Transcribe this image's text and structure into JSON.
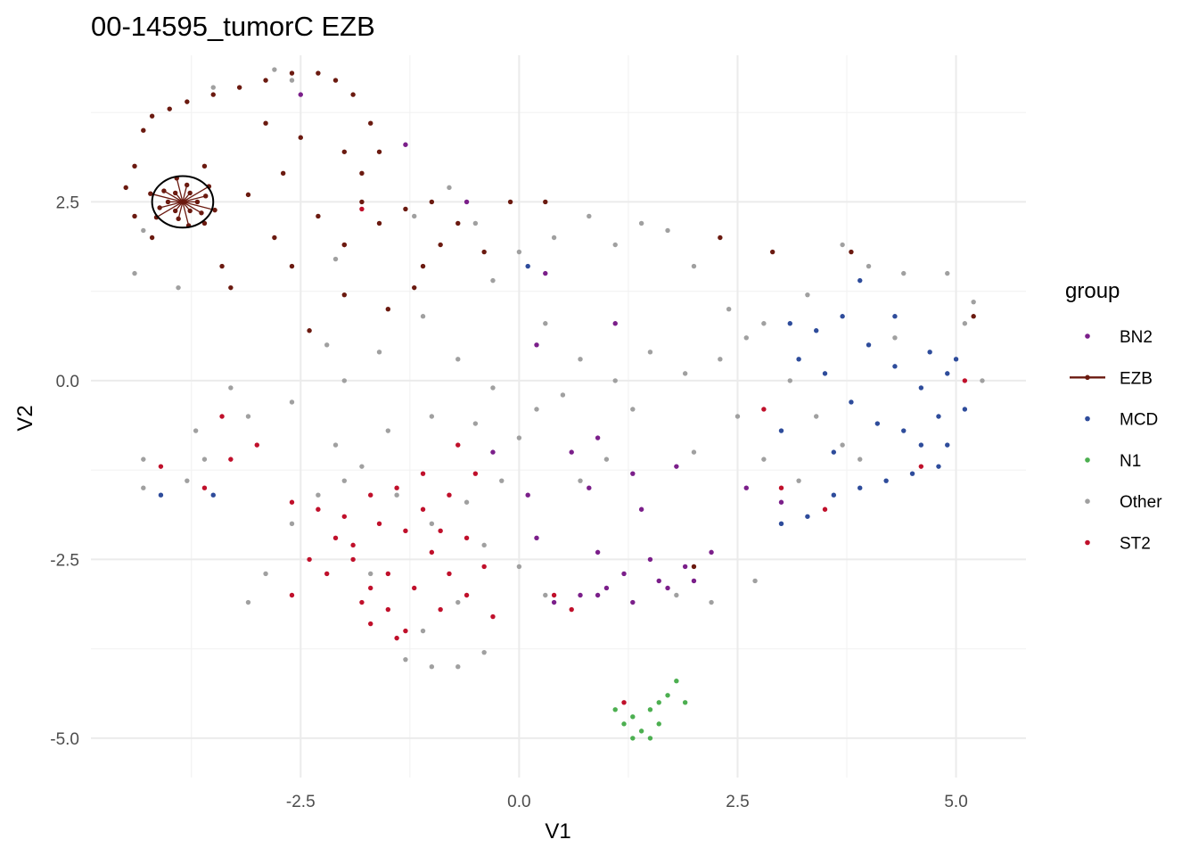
{
  "chart_data": {
    "type": "scatter",
    "title": "00-14595_tumorC EZB",
    "xlabel": "V1",
    "ylabel": "V2",
    "xlim": [
      -4.9,
      5.8
    ],
    "ylim": [
      -5.55,
      4.55
    ],
    "x_ticks": [
      -2.5,
      0.0,
      2.5,
      5.0
    ],
    "x_tick_labels": [
      "-2.5",
      "0.0",
      "2.5",
      "5.0"
    ],
    "y_ticks": [
      -5.0,
      -2.5,
      0.0,
      2.5
    ],
    "y_tick_labels": [
      "-5.0",
      "-2.5",
      "0.0",
      "2.5"
    ],
    "grid": true,
    "legend": {
      "title": "group",
      "position": "right",
      "entries": [
        {
          "label": "BN2",
          "color": "#7B1F8A",
          "style": "point"
        },
        {
          "label": "EZB",
          "color": "#6B1A10",
          "style": "line-point"
        },
        {
          "label": "MCD",
          "color": "#2E4C9B",
          "style": "point"
        },
        {
          "label": "N1",
          "color": "#4CAF50",
          "style": "point"
        },
        {
          "label": "Other",
          "color": "#A0A0A0",
          "style": "point"
        },
        {
          "label": "ST2",
          "color": "#C0102B",
          "style": "point"
        }
      ]
    },
    "annotation": {
      "type": "ellipse",
      "center": [
        -3.85,
        2.5
      ],
      "rx": 0.35,
      "ry": 0.36,
      "color": "#000000"
    },
    "series": [
      {
        "name": "EZB",
        "color": "#6B1A10",
        "star_center": [
          -3.85,
          2.5
        ],
        "points": [
          [
            -4.3,
            3.5
          ],
          [
            -4.2,
            3.7
          ],
          [
            -4.0,
            3.8
          ],
          [
            -3.8,
            3.9
          ],
          [
            -3.5,
            4.0
          ],
          [
            -3.2,
            4.1
          ],
          [
            -2.9,
            4.2
          ],
          [
            -2.6,
            4.3
          ],
          [
            -2.3,
            4.3
          ],
          [
            -2.1,
            4.2
          ],
          [
            -1.9,
            4.0
          ],
          [
            -1.7,
            3.6
          ],
          [
            -1.6,
            3.2
          ],
          [
            -1.8,
            2.9
          ],
          [
            -4.4,
            3.0
          ],
          [
            -4.5,
            2.7
          ],
          [
            -4.4,
            2.3
          ],
          [
            -4.2,
            2.0
          ],
          [
            -3.6,
            2.2
          ],
          [
            -3.4,
            1.6
          ],
          [
            -3.1,
            2.6
          ],
          [
            -2.8,
            2.0
          ],
          [
            -2.6,
            1.6
          ],
          [
            -2.3,
            2.3
          ],
          [
            -2.0,
            1.9
          ],
          [
            -1.6,
            2.2
          ],
          [
            -1.3,
            2.4
          ],
          [
            -1.0,
            2.5
          ],
          [
            -0.7,
            2.2
          ],
          [
            -0.4,
            1.8
          ],
          [
            -0.1,
            2.5
          ],
          [
            0.3,
            2.5
          ],
          [
            -2.0,
            1.2
          ],
          [
            -2.4,
            0.7
          ],
          [
            -1.5,
            1.0
          ],
          [
            -1.1,
            1.6
          ],
          [
            -2.9,
            3.6
          ],
          [
            -3.6,
            3.0
          ],
          [
            -2.5,
            3.4
          ],
          [
            -2.0,
            3.2
          ],
          [
            -3.3,
            1.3
          ],
          [
            -1.8,
            2.5
          ],
          [
            -0.9,
            1.9
          ],
          [
            2.3,
            2.0
          ],
          [
            2.9,
            1.8
          ],
          [
            3.8,
            1.8
          ],
          [
            5.2,
            0.9
          ],
          [
            -2.7,
            2.9
          ],
          [
            -1.2,
            1.3
          ],
          [
            2.0,
            -2.6
          ]
        ]
      },
      {
        "name": "BN2",
        "color": "#7B1F8A",
        "points": [
          [
            1.0,
            -2.9
          ],
          [
            1.3,
            -3.1
          ],
          [
            1.6,
            -2.8
          ],
          [
            1.9,
            -2.6
          ],
          [
            2.2,
            -2.4
          ],
          [
            0.7,
            -3.0
          ],
          [
            0.4,
            -3.1
          ],
          [
            0.9,
            -2.4
          ],
          [
            1.4,
            -1.8
          ],
          [
            0.8,
            -1.5
          ],
          [
            0.6,
            -1.0
          ],
          [
            1.7,
            -2.9
          ],
          [
            2.0,
            -2.8
          ],
          [
            0.2,
            -2.2
          ],
          [
            0.9,
            -0.8
          ],
          [
            1.3,
            -1.3
          ],
          [
            -0.3,
            -1.0
          ],
          [
            0.1,
            -1.6
          ],
          [
            1.8,
            -1.2
          ],
          [
            1.5,
            -2.5
          ],
          [
            0.3,
            1.5
          ],
          [
            1.1,
            0.8
          ],
          [
            0.2,
            0.5
          ],
          [
            2.6,
            -1.5
          ],
          [
            3.0,
            -1.7
          ],
          [
            -0.6,
            2.5
          ],
          [
            -2.5,
            4.0
          ],
          [
            -1.3,
            3.3
          ],
          [
            0.9,
            -3.0
          ],
          [
            1.2,
            -2.7
          ]
        ]
      },
      {
        "name": "MCD",
        "color": "#2E4C9B",
        "points": [
          [
            3.1,
            0.8
          ],
          [
            3.4,
            0.7
          ],
          [
            3.7,
            0.9
          ],
          [
            4.0,
            0.5
          ],
          [
            4.3,
            0.2
          ],
          [
            4.6,
            -0.1
          ],
          [
            4.8,
            -0.5
          ],
          [
            4.9,
            -0.9
          ],
          [
            4.8,
            -1.2
          ],
          [
            4.5,
            -1.3
          ],
          [
            4.2,
            -1.4
          ],
          [
            3.9,
            -1.5
          ],
          [
            3.6,
            -1.6
          ],
          [
            3.3,
            -1.9
          ],
          [
            3.0,
            -2.0
          ],
          [
            5.0,
            0.3
          ],
          [
            4.7,
            0.4
          ],
          [
            4.4,
            -0.7
          ],
          [
            3.8,
            -0.3
          ],
          [
            3.5,
            0.1
          ],
          [
            4.1,
            -0.6
          ],
          [
            4.9,
            0.1
          ],
          [
            3.2,
            0.3
          ],
          [
            3.9,
            1.4
          ],
          [
            4.3,
            0.9
          ],
          [
            3.6,
            -1.0
          ],
          [
            5.1,
            -0.4
          ],
          [
            4.6,
            -0.9
          ],
          [
            3.0,
            -0.7
          ],
          [
            -4.1,
            -1.6
          ],
          [
            -3.5,
            -1.6
          ],
          [
            0.1,
            1.6
          ]
        ]
      },
      {
        "name": "N1",
        "color": "#4CAF50",
        "points": [
          [
            1.1,
            -4.6
          ],
          [
            1.3,
            -4.7
          ],
          [
            1.5,
            -4.6
          ],
          [
            1.6,
            -4.5
          ],
          [
            1.7,
            -4.4
          ],
          [
            1.8,
            -4.2
          ],
          [
            1.4,
            -4.9
          ],
          [
            1.3,
            -5.0
          ],
          [
            1.6,
            -4.8
          ],
          [
            1.9,
            -4.5
          ],
          [
            1.5,
            -5.0
          ],
          [
            1.2,
            -4.8
          ]
        ]
      },
      {
        "name": "Other",
        "color": "#A0A0A0",
        "points": [
          [
            -2.8,
            4.35
          ],
          [
            -2.6,
            4.2
          ],
          [
            -3.5,
            4.1
          ],
          [
            -4.3,
            2.1
          ],
          [
            -4.4,
            1.5
          ],
          [
            -3.9,
            1.3
          ],
          [
            -2.1,
            1.7
          ],
          [
            -1.2,
            2.3
          ],
          [
            -0.8,
            2.7
          ],
          [
            -0.5,
            2.2
          ],
          [
            0.0,
            1.8
          ],
          [
            0.4,
            2.0
          ],
          [
            0.8,
            2.3
          ],
          [
            1.1,
            1.9
          ],
          [
            1.4,
            2.2
          ],
          [
            1.7,
            2.1
          ],
          [
            2.0,
            1.6
          ],
          [
            2.4,
            1.0
          ],
          [
            2.8,
            0.8
          ],
          [
            3.3,
            1.2
          ],
          [
            3.7,
            1.9
          ],
          [
            4.0,
            1.6
          ],
          [
            4.4,
            1.5
          ],
          [
            4.9,
            1.5
          ],
          [
            5.2,
            1.1
          ],
          [
            -0.3,
            1.4
          ],
          [
            0.3,
            0.8
          ],
          [
            0.7,
            0.3
          ],
          [
            1.1,
            0.0
          ],
          [
            1.5,
            0.4
          ],
          [
            1.9,
            0.1
          ],
          [
            2.3,
            0.3
          ],
          [
            2.6,
            0.6
          ],
          [
            -1.1,
            0.9
          ],
          [
            -0.7,
            0.3
          ],
          [
            -0.3,
            -0.1
          ],
          [
            0.2,
            -0.4
          ],
          [
            0.5,
            -0.2
          ],
          [
            -1.5,
            -0.7
          ],
          [
            -1.0,
            -0.5
          ],
          [
            -0.5,
            -0.6
          ],
          [
            0.0,
            -0.8
          ],
          [
            -0.2,
            -1.4
          ],
          [
            -0.6,
            -1.7
          ],
          [
            -1.0,
            -2.0
          ],
          [
            -1.4,
            -1.6
          ],
          [
            -1.8,
            -1.2
          ],
          [
            -2.1,
            -0.9
          ],
          [
            -0.4,
            -2.3
          ],
          [
            0.0,
            -2.6
          ],
          [
            -0.7,
            -3.1
          ],
          [
            -1.1,
            -3.5
          ],
          [
            -1.3,
            -3.9
          ],
          [
            -1.0,
            -4.0
          ],
          [
            -0.7,
            -4.0
          ],
          [
            -0.4,
            -3.8
          ],
          [
            0.3,
            -3.0
          ],
          [
            1.8,
            -3.0
          ],
          [
            2.2,
            -3.1
          ],
          [
            2.7,
            -2.8
          ],
          [
            -3.1,
            -3.1
          ],
          [
            -2.9,
            -2.7
          ],
          [
            -2.6,
            -2.0
          ],
          [
            -2.3,
            -1.6
          ],
          [
            -2.0,
            -1.4
          ],
          [
            -1.7,
            -2.7
          ],
          [
            -4.3,
            -1.1
          ],
          [
            -4.3,
            -1.5
          ],
          [
            -3.8,
            -1.4
          ],
          [
            -3.6,
            -1.1
          ],
          [
            -3.7,
            -0.7
          ],
          [
            -3.1,
            -0.5
          ],
          [
            -2.6,
            -0.3
          ],
          [
            -2.0,
            0.0
          ],
          [
            -3.3,
            -0.1
          ],
          [
            -1.6,
            0.4
          ],
          [
            -2.2,
            0.5
          ],
          [
            3.1,
            0.0
          ],
          [
            3.4,
            -0.5
          ],
          [
            3.7,
            -0.9
          ],
          [
            2.8,
            -1.1
          ],
          [
            3.2,
            -1.4
          ],
          [
            3.9,
            -1.1
          ],
          [
            4.3,
            0.6
          ],
          [
            5.1,
            0.8
          ],
          [
            5.3,
            0.0
          ],
          [
            0.7,
            -1.4
          ],
          [
            1.0,
            -1.1
          ],
          [
            2.0,
            -1.0
          ],
          [
            2.5,
            -0.5
          ],
          [
            1.3,
            -0.4
          ]
        ]
      },
      {
        "name": "ST2",
        "color": "#C0102B",
        "points": [
          [
            -2.3,
            -1.8
          ],
          [
            -2.1,
            -2.2
          ],
          [
            -1.9,
            -2.5
          ],
          [
            -1.7,
            -2.9
          ],
          [
            -1.5,
            -3.2
          ],
          [
            -1.3,
            -3.5
          ],
          [
            -1.8,
            -3.1
          ],
          [
            -1.6,
            -2.0
          ],
          [
            -1.3,
            -2.1
          ],
          [
            -1.0,
            -2.4
          ],
          [
            -0.8,
            -2.7
          ],
          [
            -0.6,
            -3.0
          ],
          [
            -1.4,
            -1.5
          ],
          [
            -1.1,
            -1.3
          ],
          [
            -0.8,
            -1.6
          ],
          [
            -0.6,
            -2.2
          ],
          [
            -0.4,
            -2.6
          ],
          [
            -1.7,
            -3.4
          ],
          [
            -1.9,
            -2.3
          ],
          [
            -1.5,
            -2.7
          ],
          [
            -1.2,
            -2.9
          ],
          [
            -0.9,
            -3.2
          ],
          [
            -2.4,
            -2.5
          ],
          [
            -2.6,
            -3.0
          ],
          [
            -3.4,
            -0.5
          ],
          [
            -3.3,
            -1.1
          ],
          [
            -3.0,
            -0.9
          ],
          [
            -4.1,
            -1.2
          ],
          [
            -3.6,
            -1.5
          ],
          [
            -0.7,
            -0.9
          ],
          [
            0.4,
            -3.0
          ],
          [
            0.6,
            -3.2
          ],
          [
            -0.3,
            -3.3
          ],
          [
            -2.0,
            -1.9
          ],
          [
            -1.7,
            -1.6
          ],
          [
            -1.1,
            -1.8
          ],
          [
            2.8,
            -0.4
          ],
          [
            3.0,
            -1.5
          ],
          [
            3.5,
            -1.8
          ],
          [
            4.6,
            -1.2
          ],
          [
            5.1,
            0.0
          ],
          [
            -1.8,
            2.4
          ],
          [
            -2.0,
            1.9
          ],
          [
            -2.6,
            -1.7
          ],
          [
            -1.4,
            -3.6
          ],
          [
            -0.9,
            -2.1
          ],
          [
            -0.5,
            -1.3
          ],
          [
            -2.2,
            -2.7
          ],
          [
            1.2,
            -4.5
          ]
        ]
      }
    ]
  }
}
